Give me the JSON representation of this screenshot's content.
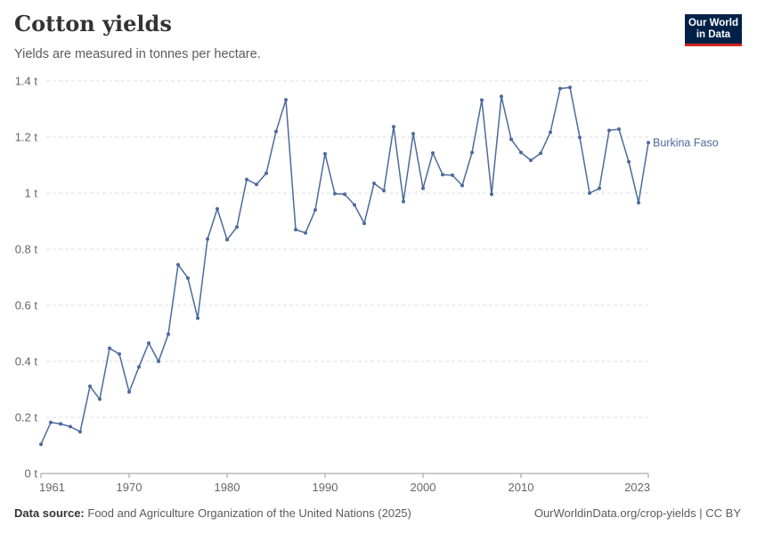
{
  "header": {
    "title": "Cotton yields",
    "subtitle": "Yields are measured in tonnes per hectare."
  },
  "logo": {
    "line1": "Our World",
    "line2": "in Data"
  },
  "footer": {
    "source_label": "Data source:",
    "source_text": "Food and Agriculture Organization of the United Nations (2025)",
    "link_text": "OurWorldinData.org/crop-yields | CC BY"
  },
  "colors": {
    "series": "#4c6a9c",
    "grid": "#dddddd",
    "brand": "#002147",
    "brand_accent": "#ce261e"
  },
  "chart_data": {
    "type": "line",
    "title": "Cotton yields",
    "xlabel": "",
    "ylabel": "",
    "xlim": [
      1961,
      2023
    ],
    "ylim": [
      0,
      1.4
    ],
    "y_ticks": [
      {
        "value": 0,
        "label": "0 t"
      },
      {
        "value": 0.2,
        "label": "0.2 t"
      },
      {
        "value": 0.4,
        "label": "0.4 t"
      },
      {
        "value": 0.6,
        "label": "0.6 t"
      },
      {
        "value": 0.8,
        "label": "0.8 t"
      },
      {
        "value": 1,
        "label": "1 t"
      },
      {
        "value": 1.2,
        "label": "1.2 t"
      },
      {
        "value": 1.4,
        "label": "1.4 t"
      }
    ],
    "x_ticks": [
      {
        "value": 1961,
        "label": "1961"
      },
      {
        "value": 1970,
        "label": "1970"
      },
      {
        "value": 1980,
        "label": "1980"
      },
      {
        "value": 1990,
        "label": "1990"
      },
      {
        "value": 2000,
        "label": "2000"
      },
      {
        "value": 2010,
        "label": "2010"
      },
      {
        "value": 2023,
        "label": "2023"
      }
    ],
    "grid": true,
    "series": [
      {
        "name": "Burkina Faso",
        "x": [
          1961,
          1962,
          1963,
          1964,
          1965,
          1966,
          1967,
          1968,
          1969,
          1970,
          1971,
          1972,
          1973,
          1974,
          1975,
          1976,
          1977,
          1978,
          1979,
          1980,
          1981,
          1982,
          1983,
          1984,
          1985,
          1986,
          1987,
          1988,
          1989,
          1990,
          1991,
          1992,
          1993,
          1994,
          1995,
          1996,
          1997,
          1998,
          1999,
          2000,
          2001,
          2002,
          2003,
          2004,
          2005,
          2006,
          2007,
          2008,
          2009,
          2010,
          2011,
          2012,
          2013,
          2014,
          2015,
          2016,
          2017,
          2018,
          2019,
          2020,
          2021,
          2022,
          2023
        ],
        "values": [
          0.104,
          0.182,
          0.177,
          0.167,
          0.149,
          0.311,
          0.265,
          0.447,
          0.426,
          0.291,
          0.38,
          0.465,
          0.4,
          0.497,
          0.745,
          0.697,
          0.554,
          0.836,
          0.944,
          0.834,
          0.879,
          1.049,
          1.031,
          1.071,
          1.22,
          1.333,
          0.87,
          0.858,
          0.94,
          1.14,
          0.998,
          0.996,
          0.958,
          0.892,
          1.035,
          1.009,
          1.237,
          0.97,
          1.212,
          1.017,
          1.143,
          1.066,
          1.064,
          1.027,
          1.145,
          1.332,
          0.996,
          1.345,
          1.192,
          1.145,
          1.117,
          1.142,
          1.217,
          1.373,
          1.377,
          1.199,
          1.0,
          1.017,
          1.224,
          1.228,
          1.112,
          0.966,
          1.18
        ]
      }
    ],
    "legend": "end-of-line labels"
  }
}
